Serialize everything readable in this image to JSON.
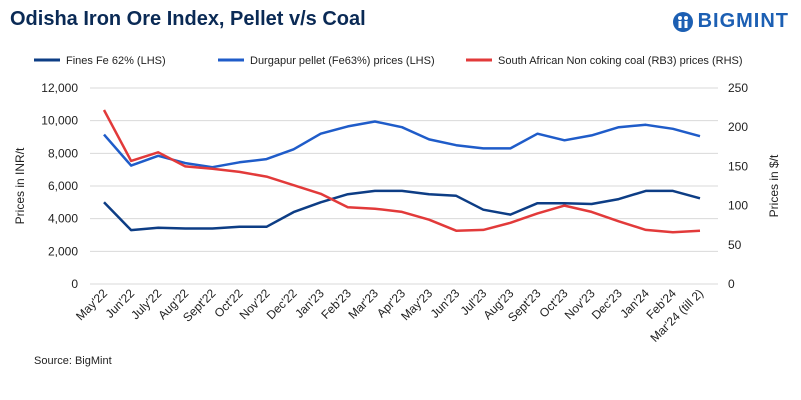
{
  "header": {
    "title": "Odisha Iron Ore Index, Pellet v/s Coal",
    "brand": "BIGMINT"
  },
  "footer": {
    "source": "Source: BigMint"
  },
  "colors": {
    "fines": "#0d3d85",
    "pellet": "#1f5cc9",
    "coal": "#e23a3a",
    "grid": "#d9d9d9"
  },
  "chart_data": {
    "type": "line",
    "categories": [
      "May'22",
      "Jun'22",
      "July'22",
      "Aug'22",
      "Sept'22",
      "Oct'22",
      "Nov'22",
      "Dec'22",
      "Jan'23",
      "Feb'23",
      "Mar'23",
      "Apr'23",
      "May'23",
      "Jun'23",
      "Jul'23",
      "Aug'23",
      "Sept'23",
      "Oct'23",
      "Nov'23",
      "Dec'23",
      "Jan'24",
      "Feb'24",
      "Mar'24 (till 2)"
    ],
    "series": [
      {
        "name": "Fines Fe 62% (LHS)",
        "axis": "left",
        "color_key": "fines",
        "values": [
          5000,
          3300,
          3450,
          3400,
          3400,
          3500,
          3500,
          4400,
          5000,
          5500,
          5700,
          5700,
          5500,
          5400,
          4550,
          4250,
          4950,
          4950,
          4900,
          5200,
          5700,
          5700,
          5250
        ]
      },
      {
        "name": "Durgapur pellet (Fe63%) prices (LHS)",
        "axis": "left",
        "color_key": "pellet",
        "values": [
          9150,
          7250,
          7850,
          7400,
          7150,
          7450,
          7650,
          8250,
          9200,
          9650,
          9950,
          9600,
          8850,
          8500,
          8300,
          8300,
          9200,
          8800,
          9100,
          9600,
          9750,
          9500,
          9050
        ]
      },
      {
        "name": "South African Non coking coal (RB3) prices (RHS)",
        "axis": "right",
        "color_key": "coal",
        "values": [
          222,
          157,
          168,
          150,
          147,
          143,
          137,
          126,
          115,
          98,
          96,
          92,
          82,
          68,
          69,
          78,
          90,
          100,
          92,
          80,
          69,
          66,
          68
        ]
      }
    ],
    "left_axis": {
      "label": "Prices in INR/t",
      "min": 0,
      "max": 12000,
      "step": 2000,
      "ticks": [
        "0",
        "2,000",
        "4,000",
        "6,000",
        "8,000",
        "10,000",
        "12,000"
      ]
    },
    "right_axis": {
      "label": "Prices in $/t",
      "min": 0,
      "max": 250,
      "step": 50,
      "ticks": [
        "0",
        "50",
        "100",
        "150",
        "200",
        "250"
      ]
    },
    "legend_position": "top",
    "grid": true
  }
}
